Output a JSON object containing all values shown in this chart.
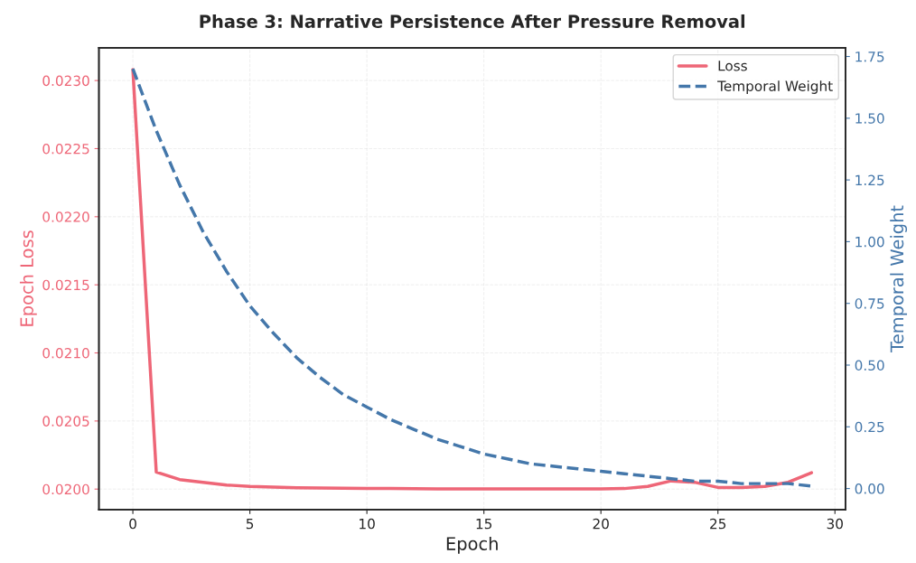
{
  "chart_data": {
    "type": "line",
    "title": "Phase 3: Narrative Persistence After Pressure Removal",
    "xlabel": "Epoch",
    "ylabel": "Epoch Loss",
    "y2label": "Temporal Weight",
    "x": [
      0,
      1,
      2,
      3,
      4,
      5,
      6,
      7,
      8,
      9,
      10,
      11,
      12,
      13,
      14,
      15,
      16,
      17,
      18,
      19,
      20,
      21,
      22,
      23,
      24,
      25,
      26,
      27,
      28,
      29
    ],
    "series": [
      {
        "name": "Loss",
        "color": "#ee6677",
        "line_style": "solid",
        "values": [
          0.02308,
          0.020125,
          0.02007,
          0.02005,
          0.02003,
          0.02002,
          0.020015,
          0.02001,
          0.020008,
          0.020006,
          0.020005,
          0.020004,
          0.020003,
          0.020002,
          0.020002,
          0.020001,
          0.020001,
          0.020001,
          0.020001,
          0.020001,
          0.020002,
          0.020004,
          0.02002,
          0.02006,
          0.02005,
          0.020012,
          0.020012,
          0.02002,
          0.02005,
          0.02012
        ]
      },
      {
        "name": "Temporal Weight",
        "color": "#4477aa",
        "line_style": "dashed",
        "axis": "y2",
        "values": [
          1.7,
          1.45,
          1.23,
          1.04,
          0.88,
          0.74,
          0.63,
          0.53,
          0.45,
          0.38,
          0.33,
          0.28,
          0.24,
          0.2,
          0.17,
          0.14,
          0.12,
          0.1,
          0.09,
          0.08,
          0.07,
          0.06,
          0.05,
          0.04,
          0.03,
          0.03,
          0.02,
          0.02,
          0.02,
          0.01
        ]
      }
    ],
    "xlim": [
      -1.45,
      30.45
    ],
    "xticks": [
      0,
      5,
      10,
      15,
      20,
      25,
      30
    ],
    "ylim": [
      0.01985,
      0.02324
    ],
    "yticks": [
      {
        "value": 0.02,
        "label": "0.0200"
      },
      {
        "value": 0.0205,
        "label": "0.0205"
      },
      {
        "value": 0.021,
        "label": "0.0210"
      },
      {
        "value": 0.0215,
        "label": "0.0215"
      },
      {
        "value": 0.022,
        "label": "0.0220"
      },
      {
        "value": 0.0225,
        "label": "0.0225"
      },
      {
        "value": 0.023,
        "label": "0.0230"
      }
    ],
    "y2lim": [
      -0.085,
      1.785
    ],
    "y2ticks": [
      {
        "value": 0,
        "label": "0.00"
      },
      {
        "value": 0.25,
        "label": "0.25"
      },
      {
        "value": 0.5,
        "label": "0.50"
      },
      {
        "value": 0.75,
        "label": "0.75"
      },
      {
        "value": 1.0,
        "label": "1.00"
      },
      {
        "value": 1.25,
        "label": "1.25"
      },
      {
        "value": 1.5,
        "label": "1.50"
      },
      {
        "value": 1.75,
        "label": "1.75"
      }
    ],
    "grid": true,
    "legend": "top right"
  }
}
